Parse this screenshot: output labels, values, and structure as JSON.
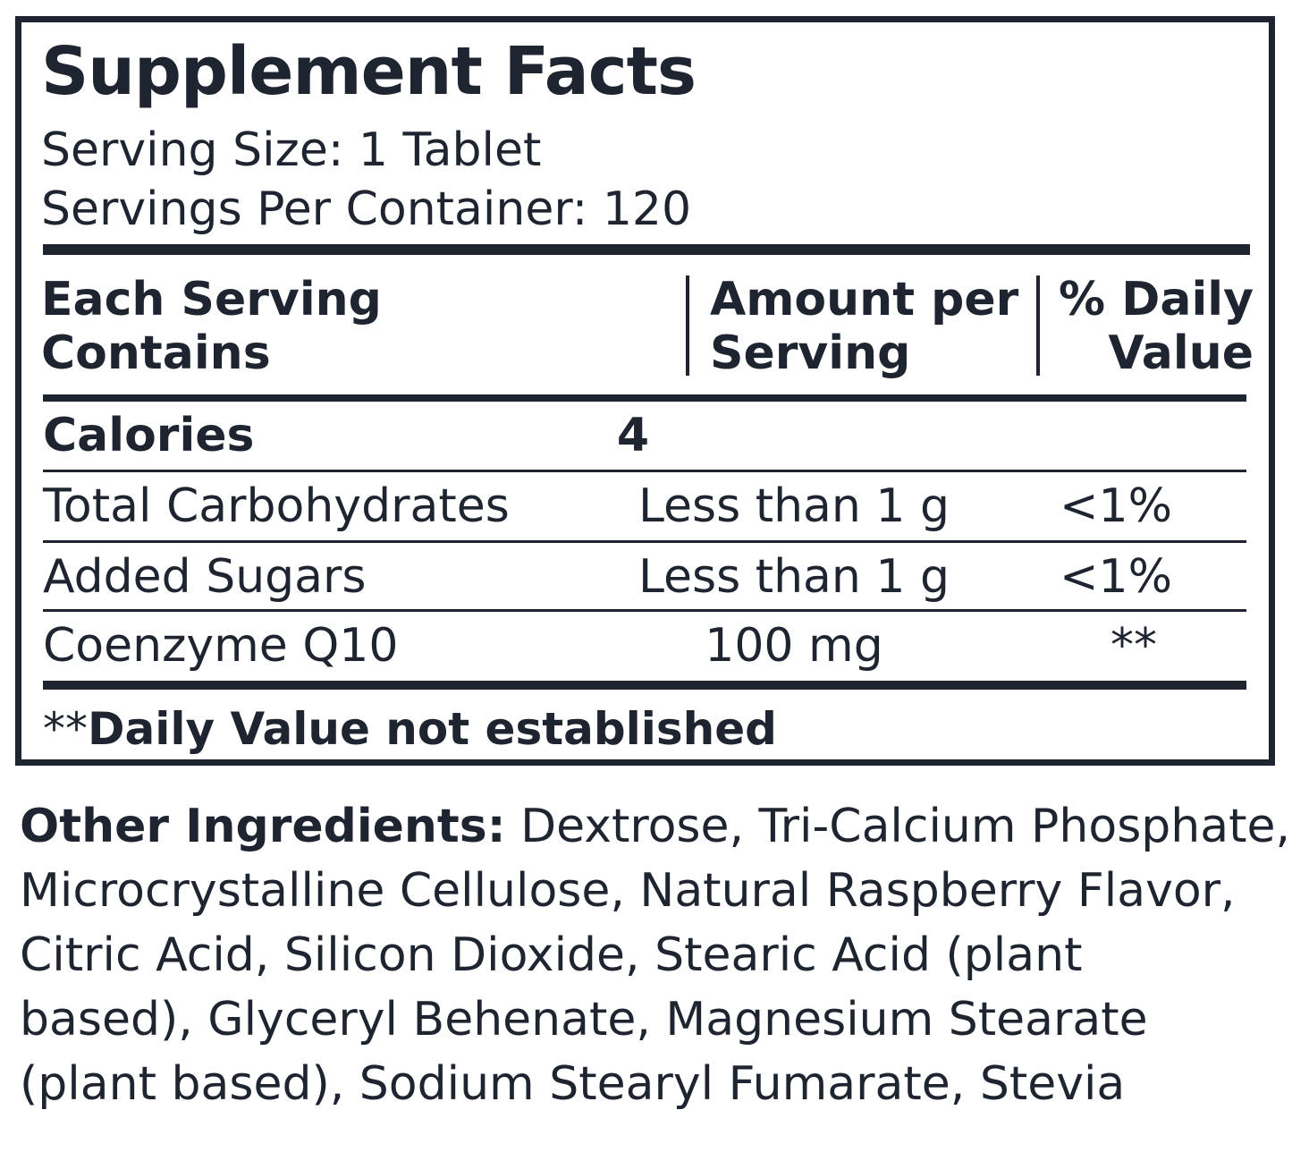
{
  "panel": {
    "title": "Supplement Facts",
    "serving_size": "Serving Size: 1 Tablet",
    "servings_per_container": "Servings Per Container: 120"
  },
  "table": {
    "headers": {
      "name": "Each Serving\nContains",
      "amount": "Amount per\nServing",
      "daily_value": "% Daily\nValue"
    },
    "rows": [
      {
        "name": "Calories",
        "amount": "4",
        "daily_value": ""
      },
      {
        "name": "Total Carbohydrates",
        "amount": "Less than 1 g",
        "daily_value": "<1%"
      },
      {
        "name": "Added Sugars",
        "amount": "Less than 1 g",
        "daily_value": "<1%"
      },
      {
        "name": "Coenzyme Q10",
        "amount": "100 mg",
        "daily_value": "**"
      }
    ],
    "footnote_marker": "**",
    "footnote_text": "Daily Value not established"
  },
  "other_ingredients": {
    "label": "Other Ingredients:",
    "lines": [
      " Dextrose, Tri-Calcium Phosphate,",
      "Microcrystalline Cellulose, Natural Raspberry Flavor,",
      "Citric Acid, Silicon Dioxide, Stearic Acid (plant",
      "based), Glyceryl Behenate, Magnesium Stearate",
      "(plant based), Sodium Stearyl Fumarate, Stevia"
    ]
  },
  "colors": {
    "ink": "#1f2530",
    "background": "#ffffff"
  }
}
